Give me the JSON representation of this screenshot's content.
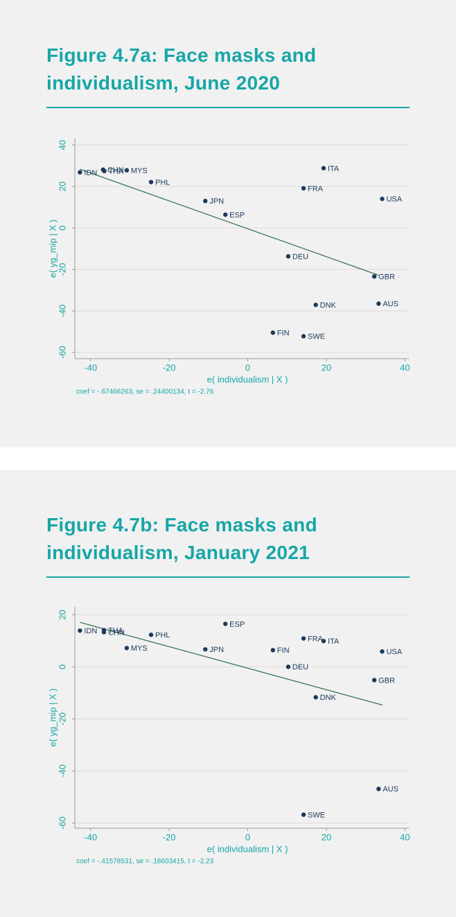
{
  "chart_data": [
    {
      "type": "scatter",
      "title": "Figure 4.7a: Face masks and individualism, June 2020",
      "xlabel": "e( individualism | X )",
      "ylabel": "e( yg_mip | X )",
      "note": "coef = -.67466263, se = .24400134, t = -2.76",
      "point_labels": [
        "IDN",
        "CHN",
        "THA",
        "MYS",
        "PHL",
        "JPN",
        "ESP",
        "ITA",
        "FRA",
        "USA",
        "DEU",
        "GBR",
        "DNK",
        "AUS",
        "FIN",
        "SWE"
      ],
      "x": [
        -42.7,
        -36.8,
        -36.5,
        -30.8,
        -24.6,
        -10.8,
        -5.7,
        19.3,
        14.2,
        34.2,
        10.3,
        32.2,
        17.3,
        33.3,
        6.4,
        14.2
      ],
      "values": [
        26.8,
        28.1,
        27.4,
        27.8,
        22.1,
        13.0,
        6.4,
        28.8,
        19.1,
        14.0,
        -13.7,
        -23.4,
        -37.1,
        -36.5,
        -50.5,
        -52.2
      ],
      "fit_line": {
        "x": [
          -42.7,
          33.3
        ],
        "values": [
          28.3,
          -22.8
        ]
      },
      "xlim": [
        -44,
        41
      ],
      "ylim": [
        -63,
        43
      ],
      "xticks": [
        -40,
        -20,
        0,
        20,
        40
      ],
      "yticks": [
        -60,
        -40,
        -20,
        0,
        20,
        40
      ],
      "grid": true,
      "color": "#1b3a5c",
      "line_color": "#2e6b4f"
    },
    {
      "type": "scatter",
      "title": "Figure 4.7b: Face masks and individualism, January 2021",
      "xlabel": "e( individualism | X )",
      "ylabel": "e( yg_mip | X )",
      "note": "coef = -.41578531, se = .18603415, t = -2.23",
      "point_labels": [
        "IDN",
        "THA",
        "CHN",
        "PHL",
        "MYS",
        "ESP",
        "JPN",
        "FRA",
        "ITA",
        "FIN",
        "USA",
        "DEU",
        "GBR",
        "DNK",
        "AUS",
        "SWE"
      ],
      "x": [
        -42.7,
        -36.6,
        -36.6,
        -24.6,
        -30.8,
        -5.7,
        -10.8,
        14.2,
        19.3,
        6.4,
        34.2,
        10.3,
        32.2,
        17.3,
        33.3,
        14.2
      ],
      "values": [
        13.9,
        14.1,
        13.3,
        12.3,
        7.2,
        16.5,
        6.7,
        10.9,
        9.9,
        6.4,
        5.9,
        0,
        -5.1,
        -11.7,
        -46.9,
        -56.8
      ],
      "fit_line": {
        "x": [
          -42.7,
          34.3
        ],
        "values": [
          17.1,
          -14.7
        ]
      },
      "xlim": [
        -44,
        41
      ],
      "ylim": [
        -62,
        23
      ],
      "xticks": [
        -40,
        -20,
        0,
        20,
        40
      ],
      "yticks": [
        -60,
        -40,
        -20,
        0,
        20
      ],
      "grid": true,
      "color": "#1b3a5c",
      "line_color": "#2e6b4f"
    }
  ]
}
